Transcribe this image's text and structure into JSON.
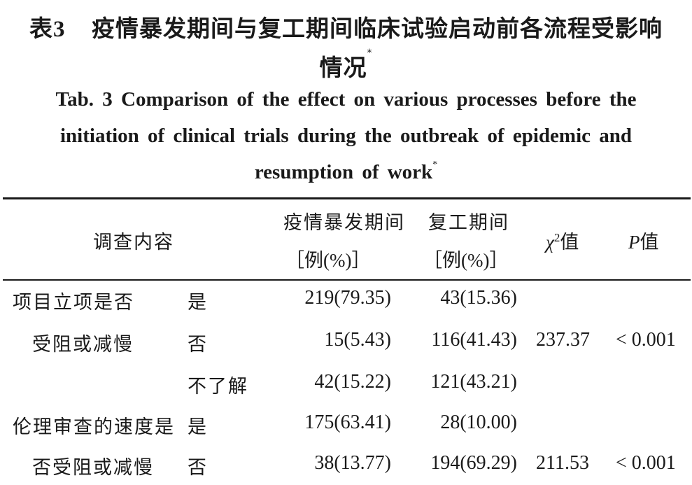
{
  "title": {
    "cn_label": "表3",
    "cn_line1": "疫情暴发期间与复工期间临床试验启动前各流程受影响",
    "cn_line2": "情况",
    "en_line1": "Tab. 3   Comparison of the effect on various processes before the",
    "en_line2": "initiation of clinical trials during the outbreak of epidemic and",
    "en_line3": "resumption of work",
    "asterisk": "*"
  },
  "table": {
    "headers": {
      "item": "调查内容",
      "outbreak_line1": "疫情暴发期间",
      "outbreak_line2": "［例(%)］",
      "resume_line1": "复工期间",
      "resume_line2": "［例(%)］",
      "chi_symbol": "χ",
      "chi_sup": "2",
      "chi_suffix": "值",
      "p_symbol": "P",
      "p_suffix": "值"
    },
    "groups": [
      {
        "item_line1": "项目立项是否",
        "item_line2": "受阻或减慢",
        "rows": [
          {
            "option": "是",
            "outbreak": "219(79.35)",
            "resume": "43(15.36)"
          },
          {
            "option": "否",
            "outbreak": "15(5.43)",
            "resume": "116(41.43)"
          },
          {
            "option": "不了解",
            "outbreak": "42(15.22)",
            "resume": "121(43.21)"
          }
        ],
        "chi2": "237.37",
        "p": "< 0.001"
      },
      {
        "item_line1": "伦理审查的速度是",
        "item_line2": "否受阻或减慢",
        "rows": [
          {
            "option": "是",
            "outbreak": "175(63.41)",
            "resume": "28(10.00)"
          },
          {
            "option": "否",
            "outbreak": "38(13.77)",
            "resume": "194(69.29)"
          }
        ],
        "chi2": "211.53",
        "p": "< 0.001"
      }
    ]
  }
}
